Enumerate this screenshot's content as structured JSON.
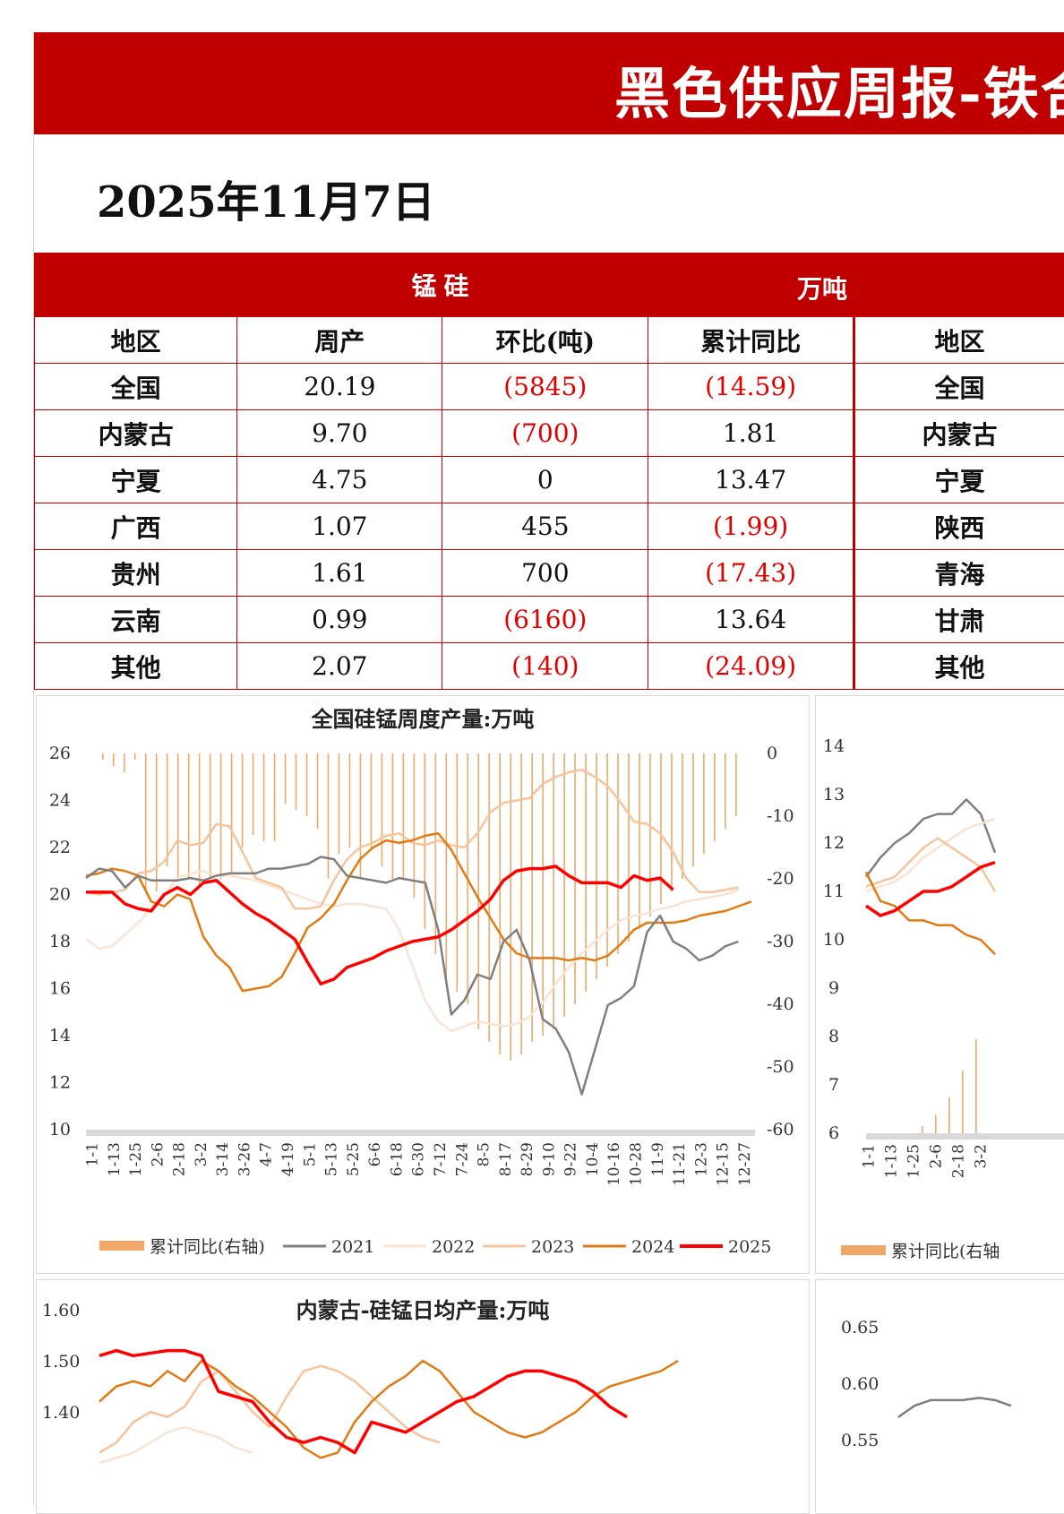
{
  "header": {
    "title": "黑色供应周报-铁合",
    "date": "2025年11月7日"
  },
  "colors": {
    "brand_red": "#c00000",
    "negative_red": "#e00000"
  },
  "table": {
    "section_title": "锰硅",
    "unit": "万吨",
    "columns": [
      "地区",
      "周产",
      "环比(吨)",
      "累计同比",
      "地区"
    ],
    "rows": [
      {
        "region": "全国",
        "weekly": "20.19",
        "wow": "(5845)",
        "wow_neg": true,
        "yoy": "(14.59)",
        "yoy_neg": true,
        "region2": "全国"
      },
      {
        "region": "内蒙古",
        "weekly": "9.70",
        "wow": "(700)",
        "wow_neg": true,
        "yoy": "1.81",
        "yoy_neg": false,
        "region2": "内蒙古"
      },
      {
        "region": "宁夏",
        "weekly": "4.75",
        "wow": "0",
        "wow_neg": false,
        "yoy": "13.47",
        "yoy_neg": false,
        "region2": "宁夏"
      },
      {
        "region": "广西",
        "weekly": "1.07",
        "wow": "455",
        "wow_neg": false,
        "yoy": "(1.99)",
        "yoy_neg": true,
        "region2": "陕西"
      },
      {
        "region": "贵州",
        "weekly": "1.61",
        "wow": "700",
        "wow_neg": false,
        "yoy": "(17.43)",
        "yoy_neg": true,
        "region2": "青海"
      },
      {
        "region": "云南",
        "weekly": "0.99",
        "wow": "(6160)",
        "wow_neg": true,
        "yoy": "13.64",
        "yoy_neg": false,
        "region2": "甘肃"
      },
      {
        "region": "其他",
        "weekly": "2.07",
        "wow": "(140)",
        "wow_neg": true,
        "yoy": "(24.09)",
        "yoy_neg": true,
        "region2": "其他"
      }
    ]
  },
  "chart_data": [
    {
      "type": "line",
      "title": "全国硅锰周度产量:万吨",
      "x_labels": [
        "1-1",
        "1-13",
        "1-25",
        "2-6",
        "2-18",
        "3-2",
        "3-14",
        "3-26",
        "4-7",
        "4-19",
        "5-1",
        "5-13",
        "5-25",
        "6-6",
        "6-18",
        "6-30",
        "7-12",
        "7-24",
        "8-5",
        "8-17",
        "8-29",
        "9-10",
        "9-22",
        "10-4",
        "10-16",
        "10-28",
        "11-9",
        "11-21",
        "12-3",
        "12-15",
        "12-27"
      ],
      "ylim": [
        10,
        26
      ],
      "yticks": [
        "26",
        "24",
        "22",
        "20",
        "18",
        "16",
        "14",
        "12",
        "10"
      ],
      "y2lim": [
        -60,
        0
      ],
      "y2ticks": [
        "0",
        "-10",
        "-20",
        "-30",
        "-40",
        "-50",
        "-60"
      ],
      "legend": [
        "累计同比(右轴)",
        "2021",
        "2022",
        "2023",
        "2024",
        "2025"
      ],
      "bars": {
        "name": "累计同比(右轴)",
        "color": "#f0a868",
        "values": [
          -1,
          -2,
          -3,
          -1,
          -22,
          -22,
          -18,
          -20,
          -20,
          -21,
          -20,
          -20,
          -19,
          -15,
          -13,
          -14,
          -14,
          -8,
          -9,
          -10,
          -12,
          -20,
          -16,
          -15,
          -20,
          -15,
          -18,
          -20,
          -20,
          -23,
          -28,
          -32,
          -36,
          -38,
          -40,
          -44,
          -46,
          -48,
          -49,
          -48,
          -46,
          -45,
          -44,
          -42,
          -40,
          -38,
          -36,
          -34,
          -32,
          -30,
          -28,
          -26,
          -24,
          -22,
          -20,
          -18,
          -16,
          -14,
          -12,
          -10
        ]
      },
      "series": [
        {
          "name": "2021",
          "color": "#7f7f7f",
          "values": [
            20.7,
            21.1,
            21.0,
            20.3,
            20.8,
            20.6,
            20.6,
            20.6,
            20.7,
            20.6,
            20.8,
            20.9,
            20.9,
            20.9,
            21.1,
            21.1,
            21.2,
            21.3,
            21.6,
            21.5,
            20.8,
            20.7,
            20.6,
            20.5,
            20.7,
            20.6,
            20.5,
            18.5,
            14.9,
            15.5,
            16.6,
            16.4,
            18.0,
            18.5,
            17.2,
            14.7,
            14.3,
            13.3,
            11.5,
            13.4,
            15.3,
            15.6,
            16.1,
            18.4,
            19.1,
            18.0,
            17.7,
            17.2,
            17.4,
            17.8,
            18.0
          ]
        },
        {
          "name": "2022",
          "color": "#fae3d3",
          "values": [
            18.1,
            17.7,
            17.8,
            18.3,
            18.8,
            19.4,
            20.0,
            20.7,
            20.9,
            21.0,
            20.8,
            20.8,
            20.7,
            20.6,
            20.4,
            20.2,
            20.0,
            19.8,
            19.6,
            19.5,
            19.6,
            19.6,
            19.5,
            19.4,
            18.5,
            17.0,
            15.5,
            14.6,
            14.2,
            14.4,
            14.6,
            14.5,
            14.4,
            14.5,
            14.8,
            15.4,
            16.2,
            16.9,
            17.5,
            18.0,
            18.5,
            18.9,
            19.1,
            19.2,
            19.4,
            19.5,
            19.7,
            19.8,
            19.9,
            20.0,
            20.2
          ]
        },
        {
          "name": "2023",
          "color": "#f5c49c",
          "values": [
            20.1,
            20.0,
            20.1,
            20.2,
            20.9,
            21.0,
            21.4,
            22.3,
            22.1,
            22.2,
            23.0,
            22.9,
            21.8,
            20.7,
            20.5,
            20.3,
            19.4,
            19.4,
            19.5,
            20.6,
            21.5,
            22.0,
            22.2,
            22.5,
            22.6,
            22.2,
            22.1,
            22.3,
            22.1,
            22.0,
            22.6,
            23.5,
            23.9,
            24.0,
            24.1,
            24.7,
            25.0,
            25.2,
            25.3,
            25.0,
            24.6,
            23.9,
            23.1,
            23.0,
            22.6,
            21.8,
            20.7,
            20.1,
            20.1,
            20.2,
            20.3
          ]
        },
        {
          "name": "2024",
          "color": "#e07b14",
          "values": [
            20.8,
            20.9,
            21.1,
            21.0,
            20.8,
            19.7,
            19.5,
            20.0,
            19.8,
            18.2,
            17.4,
            16.9,
            15.9,
            16.0,
            16.1,
            16.5,
            17.5,
            18.6,
            19.0,
            19.6,
            20.6,
            21.5,
            22.0,
            22.3,
            22.2,
            22.3,
            22.5,
            22.6,
            21.9,
            20.9,
            19.9,
            19.0,
            18.1,
            17.5,
            17.3,
            17.3,
            17.3,
            17.2,
            17.3,
            17.2,
            17.4,
            17.9,
            18.5,
            18.8,
            18.8,
            18.8,
            18.9,
            19.1,
            19.2,
            19.3,
            19.5,
            19.7
          ]
        },
        {
          "name": "2025",
          "color": "#ff0000",
          "values": [
            20.1,
            20.1,
            20.1,
            19.6,
            19.4,
            19.3,
            20.0,
            20.3,
            20.0,
            20.5,
            20.6,
            20.1,
            19.6,
            19.2,
            18.9,
            18.5,
            18.1,
            17.1,
            16.2,
            16.4,
            16.9,
            17.1,
            17.3,
            17.6,
            17.8,
            18.0,
            18.1,
            18.2,
            18.5,
            18.9,
            19.3,
            19.8,
            20.6,
            21.0,
            21.1,
            21.1,
            21.2,
            20.8,
            20.5,
            20.5,
            20.5,
            20.3,
            20.8,
            20.6,
            20.7,
            20.2
          ]
        }
      ]
    },
    {
      "type": "line",
      "title": "",
      "x_labels": [
        "1-1",
        "1-13",
        "1-25",
        "2-6",
        "2-18",
        "3-2"
      ],
      "ylim": [
        6,
        14
      ],
      "yticks": [
        "14",
        "13",
        "12",
        "11",
        "10",
        "9",
        "8",
        "7",
        "6"
      ],
      "legend": [
        "累计同比(右轴"
      ],
      "series": [
        {
          "name": "2021",
          "color": "#7f7f7f",
          "values": [
            11.3,
            11.7,
            12.0,
            12.2,
            12.5,
            12.6,
            12.6,
            12.9,
            12.6,
            11.8
          ]
        },
        {
          "name": "2022",
          "color": "#fae3d3",
          "values": [
            11.0,
            11.1,
            11.2,
            11.4,
            11.7,
            11.9,
            12.1,
            12.3,
            12.4,
            12.5
          ]
        },
        {
          "name": "2023",
          "color": "#f5c49c",
          "values": [
            11.1,
            11.2,
            11.3,
            11.6,
            11.9,
            12.1,
            11.9,
            11.7,
            11.5,
            11.0
          ]
        },
        {
          "name": "2024",
          "color": "#e07b14",
          "values": [
            11.4,
            10.8,
            10.7,
            10.4,
            10.4,
            10.3,
            10.3,
            10.1,
            10.0,
            9.7
          ]
        },
        {
          "name": "2025",
          "color": "#ff0000",
          "values": [
            10.7,
            10.5,
            10.6,
            10.8,
            11.0,
            11.0,
            11.1,
            11.3,
            11.5,
            11.6
          ]
        }
      ]
    },
    {
      "type": "line",
      "title": "内蒙古-硅锰日均产量:万吨",
      "yticks": [
        "1.60",
        "1.50",
        "1.40"
      ],
      "ylim": [
        1.3,
        1.6
      ],
      "series": [
        {
          "name": "2025",
          "color": "#ff0000",
          "values": [
            1.51,
            1.52,
            1.51,
            1.515,
            1.52,
            1.52,
            1.51,
            1.44,
            1.43,
            1.42,
            1.38,
            1.35,
            1.34,
            1.35,
            1.34,
            1.32,
            1.38,
            1.37,
            1.36,
            1.38,
            1.4,
            1.42,
            1.43,
            1.45,
            1.47,
            1.48,
            1.48,
            1.47,
            1.46,
            1.44,
            1.41,
            1.39
          ]
        },
        {
          "name": "2024",
          "color": "#e07b14",
          "values": [
            1.42,
            1.45,
            1.46,
            1.45,
            1.48,
            1.46,
            1.5,
            1.48,
            1.45,
            1.43,
            1.4,
            1.37,
            1.33,
            1.31,
            1.32,
            1.38,
            1.42,
            1.45,
            1.47,
            1.5,
            1.48,
            1.44,
            1.4,
            1.38,
            1.36,
            1.35,
            1.36,
            1.38,
            1.4,
            1.43,
            1.45,
            1.46,
            1.47,
            1.48,
            1.5
          ]
        },
        {
          "name": "2023",
          "color": "#f5c49c",
          "values": [
            1.32,
            1.34,
            1.38,
            1.4,
            1.39,
            1.41,
            1.46,
            1.48,
            1.44,
            1.4,
            1.37,
            1.43,
            1.48,
            1.49,
            1.48,
            1.46,
            1.43,
            1.4,
            1.37,
            1.35,
            1.34
          ]
        },
        {
          "name": "2022",
          "color": "#fae3d3",
          "values": [
            1.3,
            1.31,
            1.32,
            1.34,
            1.36,
            1.37,
            1.36,
            1.35,
            1.33,
            1.32
          ]
        }
      ]
    },
    {
      "type": "line",
      "title": "",
      "yticks": [
        "0.65",
        "0.60",
        "0.55"
      ],
      "ylim": [
        0.55,
        0.67
      ],
      "series": [
        {
          "name": "2021",
          "color": "#7f7f7f",
          "values": [
            0.57,
            0.58,
            0.585,
            0.585,
            0.585,
            0.587,
            0.585,
            0.58
          ]
        }
      ]
    }
  ]
}
